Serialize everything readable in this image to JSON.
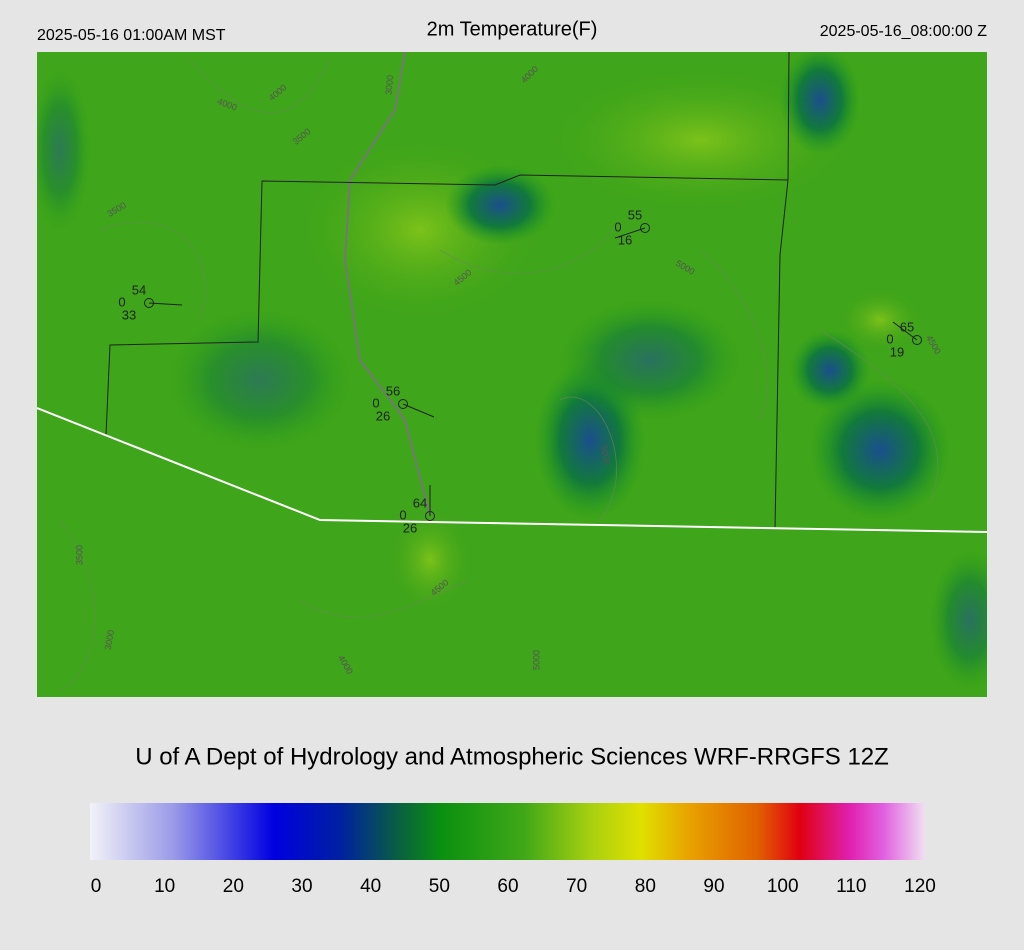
{
  "header": {
    "valid_local": "2025-05-16 01:00AM MST",
    "title": "2m Temperature(F)",
    "valid_utc": "2025-05-16_08:00:00 Z"
  },
  "stations": [
    {
      "temperature": 54,
      "code": 0,
      "dewpoint": 33
    },
    {
      "temperature": 55,
      "code": 0,
      "dewpoint": 16
    },
    {
      "temperature": 65,
      "code": 0,
      "dewpoint": 19
    },
    {
      "temperature": 56,
      "code": 0,
      "dewpoint": 26
    },
    {
      "temperature": 64,
      "code": 0,
      "dewpoint": 26
    }
  ],
  "contour_labels": [
    4000,
    4000,
    3500,
    3000,
    4000,
    3500,
    4500,
    5000,
    4500,
    5000,
    4500,
    3000,
    4000,
    3500,
    5000
  ],
  "credit": "U of A Dept of Hydrology and Atmospheric Sciences WRF-RRGFS 12Z",
  "colorbar": {
    "lim": [
      0,
      120
    ],
    "ticks": [
      0,
      10,
      20,
      30,
      40,
      50,
      60,
      70,
      80,
      90,
      100,
      110,
      120
    ]
  }
}
